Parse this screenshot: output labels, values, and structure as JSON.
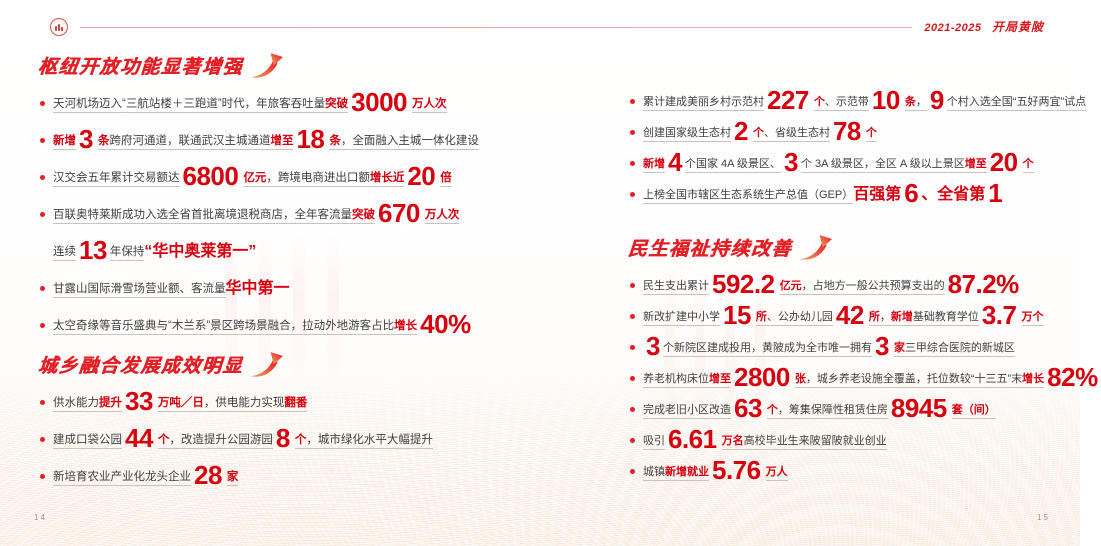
{
  "colors": {
    "accent_red": "#e31e24",
    "number_red": "#d7000f",
    "body_text": "#3f3f3f"
  },
  "icons": {
    "emblem": "district-seal-icon",
    "section_arrow": "growth-arrow-icon",
    "bullet": "dot-marker-icon"
  },
  "header": {
    "edition": "2021-2025",
    "slogan": "开局黄陂"
  },
  "footer": {
    "left_page": "14",
    "right_page": "15"
  },
  "sections": {
    "hub": {
      "title": "枢纽开放功能显著增强",
      "bullets": [
        {
          "segs": [
            {
              "t": "天河机场迈入“三航站楼＋三跑道”时代，年旅客吞吐量",
              "s": "n"
            },
            {
              "t": "突破",
              "s": "k"
            },
            {
              "t": "3000",
              "s": "b"
            },
            {
              "t": "万人次",
              "s": "u"
            }
          ]
        },
        {
          "segs": [
            {
              "t": "新增",
              "s": "k"
            },
            {
              "t": "3",
              "s": "b"
            },
            {
              "t": "条",
              "s": "u"
            },
            {
              "t": "跨府河通道，联通武汉主城通道",
              "s": "n"
            },
            {
              "t": "增至",
              "s": "k"
            },
            {
              "t": "18",
              "s": "b"
            },
            {
              "t": "条",
              "s": "u"
            },
            {
              "t": "，全面融入主城一体化建设",
              "s": "n"
            }
          ]
        },
        {
          "segs": [
            {
              "t": "汉交会五年累计交易额达",
              "s": "n"
            },
            {
              "t": "6800",
              "s": "b"
            },
            {
              "t": "亿元",
              "s": "u"
            },
            {
              "t": "，跨境电商进出口额",
              "s": "n"
            },
            {
              "t": "增长近",
              "s": "k"
            },
            {
              "t": "20",
              "s": "b"
            },
            {
              "t": "倍",
              "s": "u"
            }
          ]
        },
        {
          "segs": [
            {
              "t": "百联奥特莱斯成功入选全省首批离境退税商店，全年客流量",
              "s": "n"
            },
            {
              "t": "突破",
              "s": "k"
            },
            {
              "t": "670",
              "s": "b"
            },
            {
              "t": "万人次",
              "s": "u"
            }
          ]
        },
        {
          "marker": false,
          "segs": [
            {
              "t": "连续",
              "s": "n"
            },
            {
              "t": "13",
              "s": "b"
            },
            {
              "t": "年保持",
              "s": "n"
            },
            {
              "t": "“华中奥莱第一”",
              "s": "e"
            }
          ]
        },
        {
          "segs": [
            {
              "t": "甘露山国际滑雪场营业额、客流量",
              "s": "n"
            },
            {
              "t": "华中第一",
              "s": "e"
            }
          ]
        },
        {
          "segs": [
            {
              "t": "太空奇缘等音乐盛典与“木兰系”景区跨场景融合，拉动外地游客占比",
              "s": "n"
            },
            {
              "t": "增长",
              "s": "k"
            },
            {
              "t": "40%",
              "s": "b"
            }
          ]
        }
      ]
    },
    "urban_rural": {
      "title": "城乡融合发展成效明显",
      "bullets": [
        {
          "segs": [
            {
              "t": "供水能力",
              "s": "n"
            },
            {
              "t": "提升",
              "s": "k"
            },
            {
              "t": "33",
              "s": "b"
            },
            {
              "t": "万吨／日",
              "s": "u"
            },
            {
              "t": "，供电能力实现",
              "s": "n"
            },
            {
              "t": "翻番",
              "s": "k"
            }
          ]
        },
        {
          "segs": [
            {
              "t": "建成口袋公园",
              "s": "n"
            },
            {
              "t": "44",
              "s": "b"
            },
            {
              "t": "个",
              "s": "u"
            },
            {
              "t": "，改造提升公园游园",
              "s": "n"
            },
            {
              "t": "8",
              "s": "b"
            },
            {
              "t": "个",
              "s": "u"
            },
            {
              "t": "，城市绿化水平大幅提升",
              "s": "n"
            }
          ]
        },
        {
          "segs": [
            {
              "t": "新培育农业产业化龙头企业",
              "s": "n"
            },
            {
              "t": "28",
              "s": "b"
            },
            {
              "t": "家",
              "s": "u"
            }
          ]
        }
      ]
    },
    "urban_rural_more": {
      "bullets": [
        {
          "segs": [
            {
              "t": "累计建成美丽乡村示范村",
              "s": "n"
            },
            {
              "t": "227",
              "s": "b"
            },
            {
              "t": "个",
              "s": "u"
            },
            {
              "t": "、示范带",
              "s": "n"
            },
            {
              "t": "10",
              "s": "b"
            },
            {
              "t": "条",
              "s": "u"
            },
            {
              "t": "，",
              "s": "n"
            },
            {
              "t": "9",
              "s": "b"
            },
            {
              "t": "个村入选全国“五好两宜”试点",
              "s": "n"
            }
          ]
        },
        {
          "segs": [
            {
              "t": "创建国家级生态村",
              "s": "n"
            },
            {
              "t": "2",
              "s": "b"
            },
            {
              "t": "个",
              "s": "u"
            },
            {
              "t": "、省级生态村",
              "s": "n"
            },
            {
              "t": "78",
              "s": "b"
            },
            {
              "t": "个",
              "s": "u"
            }
          ]
        },
        {
          "segs": [
            {
              "t": "新增",
              "s": "k"
            },
            {
              "t": "4",
              "s": "b"
            },
            {
              "t": "个国家 4A 级景区、",
              "s": "n"
            },
            {
              "t": "3",
              "s": "b"
            },
            {
              "t": "个 3A 级景区，全区 A 级以上景区",
              "s": "n"
            },
            {
              "t": "增至",
              "s": "k"
            },
            {
              "t": "20",
              "s": "b"
            },
            {
              "t": "个",
              "s": "u"
            }
          ]
        },
        {
          "segs": [
            {
              "t": "上榜全国市辖区生态系统生产总值（GEP）",
              "s": "n"
            },
            {
              "t": "百强第",
              "s": "e"
            },
            {
              "t": "6",
              "s": "b"
            },
            {
              "t": "、全省第",
              "s": "e"
            },
            {
              "t": "1",
              "s": "b"
            }
          ]
        }
      ]
    },
    "livelihood": {
      "title": "民生福祉持续改善",
      "bullets": [
        {
          "segs": [
            {
              "t": "民生支出累计",
              "s": "n"
            },
            {
              "t": "592.2",
              "s": "b"
            },
            {
              "t": "亿元",
              "s": "u"
            },
            {
              "t": "，占地方一般公共预算支出的",
              "s": "n"
            },
            {
              "t": "87.2%",
              "s": "b"
            }
          ]
        },
        {
          "segs": [
            {
              "t": "新改扩建中小学",
              "s": "n"
            },
            {
              "t": "15",
              "s": "b"
            },
            {
              "t": "所",
              "s": "u"
            },
            {
              "t": "、公办幼儿园",
              "s": "n"
            },
            {
              "t": "42",
              "s": "b"
            },
            {
              "t": "所",
              "s": "u"
            },
            {
              "t": "，",
              "s": "n"
            },
            {
              "t": "新增",
              "s": "k"
            },
            {
              "t": "基础教育学位",
              "s": "n"
            },
            {
              "t": "3.7",
              "s": "b"
            },
            {
              "t": "万个",
              "s": "u"
            }
          ]
        },
        {
          "segs": [
            {
              "t": "3",
              "s": "b"
            },
            {
              "t": "个新院区建成投用，黄陂成为全市唯一拥有",
              "s": "n"
            },
            {
              "t": "3",
              "s": "b"
            },
            {
              "t": "家",
              "s": "u"
            },
            {
              "t": "三甲综合医院的新城区",
              "s": "n"
            }
          ]
        },
        {
          "segs": [
            {
              "t": "养老机构床位",
              "s": "n"
            },
            {
              "t": "增至",
              "s": "k"
            },
            {
              "t": "2800",
              "s": "b"
            },
            {
              "t": "张",
              "s": "u"
            },
            {
              "t": "，城乡养老设施全覆盖，托位数较“十三五”末",
              "s": "n"
            },
            {
              "t": "增长",
              "s": "k"
            },
            {
              "t": "82%",
              "s": "b"
            }
          ]
        },
        {
          "segs": [
            {
              "t": "完成老旧小区改造",
              "s": "n"
            },
            {
              "t": "63",
              "s": "b"
            },
            {
              "t": "个",
              "s": "u"
            },
            {
              "t": "，筹集保障性租赁住房",
              "s": "n"
            },
            {
              "t": "8945",
              "s": "b"
            },
            {
              "t": "套（间）",
              "s": "u"
            }
          ]
        },
        {
          "segs": [
            {
              "t": "吸引",
              "s": "n"
            },
            {
              "t": "6.61",
              "s": "b"
            },
            {
              "t": "万名",
              "s": "u"
            },
            {
              "t": "高校毕业生来陂留陂就业创业",
              "s": "n"
            }
          ]
        },
        {
          "segs": [
            {
              "t": "城镇",
              "s": "n"
            },
            {
              "t": "新增就业",
              "s": "k"
            },
            {
              "t": "5.76",
              "s": "b"
            },
            {
              "t": "万人",
              "s": "u"
            }
          ]
        }
      ]
    }
  }
}
